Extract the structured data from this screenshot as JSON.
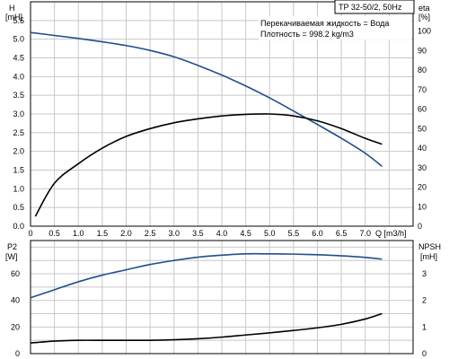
{
  "chart_data": [
    {
      "type": "line",
      "panel": "top",
      "title_box": "TP 32-50/2, 50Hz",
      "annotations": [
        "Перекачиваемая жидкость = Вода",
        "Плотность = 998.2 kg/m3"
      ],
      "left_axis_label": [
        "H",
        "[mH]"
      ],
      "right_axis_label": [
        "eta",
        "[%]"
      ],
      "x_unit_label": "Q [m3/h]",
      "x_ticks": [
        "0",
        "0.5",
        "1.0",
        "1.5",
        "2.0",
        "2.5",
        "3.0",
        "3.5",
        "4.0",
        "4.5",
        "5.0",
        "5.5",
        "6.0",
        "6.5",
        "7.0"
      ],
      "left_ticks": [
        "0.0",
        "0.5",
        "1.0",
        "1.5",
        "2.0",
        "2.5",
        "3.0",
        "3.5",
        "4.0",
        "4.5",
        "5.0",
        "5.5"
      ],
      "right_ticks": [
        "0",
        "10",
        "20",
        "30",
        "40",
        "50",
        "60",
        "70",
        "80",
        "90",
        "100"
      ],
      "xlim": [
        0,
        8
      ],
      "ylim_left": [
        0,
        6
      ],
      "ylim_right": [
        0,
        115
      ],
      "grid": true,
      "series": [
        {
          "axis": "left",
          "color": "#1f4e8c",
          "x": [
            0,
            0.5,
            1.0,
            1.5,
            2.0,
            2.5,
            3.0,
            3.5,
            4.0,
            4.5,
            5.0,
            5.5,
            6.0,
            6.5,
            7.0,
            7.35
          ],
          "y": [
            5.18,
            5.1,
            5.02,
            4.93,
            4.83,
            4.7,
            4.53,
            4.3,
            4.04,
            3.75,
            3.43,
            3.08,
            2.72,
            2.35,
            1.95,
            1.6
          ]
        },
        {
          "axis": "right",
          "color": "#000000",
          "x": [
            0.1,
            0.5,
            1.0,
            1.5,
            2.0,
            2.5,
            3.0,
            3.5,
            4.0,
            4.5,
            5.0,
            5.5,
            6.0,
            6.5,
            7.0,
            7.35
          ],
          "y": [
            5,
            22,
            32,
            40,
            46,
            50,
            53,
            55,
            56.5,
            57.3,
            57.5,
            56.5,
            54,
            50,
            45,
            42
          ]
        }
      ]
    },
    {
      "type": "line",
      "panel": "bottom",
      "left_axis_label": [
        "P2",
        "[W]"
      ],
      "right_axis_label": [
        "NPSH",
        "[mH]"
      ],
      "left_ticks": [
        "0",
        "20",
        "40",
        "60"
      ],
      "right_ticks": [
        "0",
        "1",
        "2",
        "3"
      ],
      "xlim": [
        0,
        8
      ],
      "ylim_left": [
        0,
        85
      ],
      "ylim_right": [
        0,
        4.25
      ],
      "grid": true,
      "series": [
        {
          "axis": "left",
          "color": "#1f4e8c",
          "x": [
            0,
            0.5,
            1.0,
            1.5,
            2.0,
            2.5,
            3.0,
            3.5,
            4.0,
            4.5,
            5.0,
            5.5,
            6.0,
            6.5,
            7.0,
            7.35
          ],
          "y": [
            42,
            48,
            54,
            59,
            63,
            67,
            70,
            72.5,
            74,
            75,
            75,
            74.8,
            74.3,
            73.5,
            72.3,
            71
          ]
        },
        {
          "axis": "right",
          "color": "#000000",
          "x": [
            0,
            0.5,
            1.0,
            1.5,
            2.0,
            2.5,
            3.0,
            3.5,
            4.0,
            4.5,
            5.0,
            5.5,
            6.0,
            6.5,
            7.0,
            7.35
          ],
          "y": [
            0.4,
            0.47,
            0.5,
            0.5,
            0.5,
            0.5,
            0.52,
            0.56,
            0.62,
            0.7,
            0.78,
            0.87,
            0.97,
            1.1,
            1.3,
            1.5
          ]
        }
      ]
    }
  ]
}
